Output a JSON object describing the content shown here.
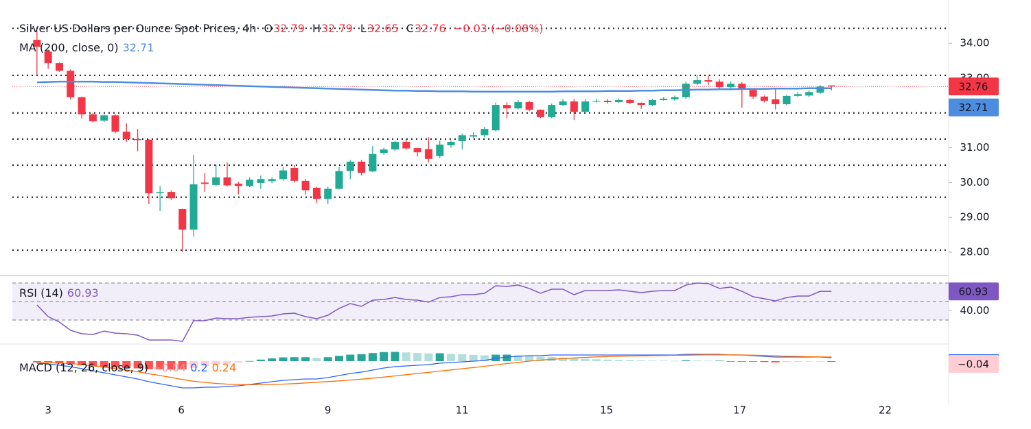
{
  "chart_data": [
    {
      "type": "candlestick",
      "title": "Silver US Dollars per Ounce Spot Prices, 4h",
      "ohlc_letters": [
        "O",
        "H",
        "L",
        "C"
      ],
      "change_label": "−0.03 (−0.08%)",
      "up_color": "#22ab94",
      "down_color": "#f23645",
      "open": [
        34.1,
        33.76,
        33.43,
        33.21,
        32.45,
        31.96,
        31.78,
        31.93,
        31.46,
        31.25,
        31.23,
        29.7,
        29.73,
        29.24,
        28.65,
        30.0,
        29.93,
        30.15,
        29.97,
        29.9,
        29.99,
        30.04,
        30.1,
        30.42,
        30.05,
        29.85,
        29.53,
        29.82,
        30.33,
        30.6,
        30.32,
        30.85,
        30.95,
        31.17,
        30.99,
        30.96,
        30.76,
        31.07,
        31.19,
        31.32,
        31.36,
        31.5,
        32.23,
        32.13,
        32.31,
        32.09,
        31.88,
        32.23,
        32.33,
        32.03,
        32.33,
        32.35,
        32.31,
        32.37,
        32.29,
        32.23,
        32.37,
        32.39,
        32.45,
        32.84,
        32.94,
        32.9,
        32.74,
        32.84,
        32.66,
        32.47,
        32.39,
        32.25,
        32.49,
        32.5,
        32.58,
        32.79
      ],
      "high": [
        34.37,
        33.82,
        33.45,
        33.25,
        32.47,
        32.0,
        31.96,
        31.96,
        31.7,
        31.54,
        31.25,
        29.9,
        29.78,
        29.25,
        30.8,
        30.28,
        30.52,
        30.58,
        30.02,
        30.15,
        30.2,
        30.16,
        30.45,
        30.5,
        30.1,
        29.88,
        29.88,
        30.45,
        30.65,
        30.65,
        31.05,
        31.0,
        31.2,
        31.25,
        31.0,
        31.3,
        31.2,
        31.2,
        31.4,
        31.45,
        31.6,
        32.3,
        32.3,
        32.37,
        32.35,
        32.1,
        32.27,
        32.4,
        32.4,
        32.4,
        32.4,
        32.4,
        32.42,
        32.4,
        32.3,
        32.4,
        32.45,
        32.5,
        32.9,
        33.1,
        33.08,
        32.97,
        32.9,
        32.88,
        32.7,
        32.5,
        32.7,
        32.52,
        32.6,
        32.65,
        32.8,
        32.79
      ],
      "low": [
        33.1,
        33.27,
        33.18,
        32.38,
        31.84,
        31.72,
        31.74,
        31.42,
        31.17,
        30.9,
        29.38,
        29.18,
        29.5,
        28.0,
        28.45,
        29.73,
        29.9,
        29.88,
        29.66,
        29.87,
        29.82,
        29.98,
        30.05,
        30.0,
        29.65,
        29.42,
        29.38,
        29.8,
        30.1,
        30.2,
        30.3,
        30.8,
        30.9,
        30.95,
        30.75,
        30.58,
        30.7,
        31.0,
        30.95,
        31.28,
        31.3,
        31.47,
        31.85,
        32.1,
        32.05,
        31.85,
        31.85,
        32.2,
        31.8,
        32.0,
        32.3,
        32.27,
        32.28,
        32.25,
        32.12,
        32.2,
        32.35,
        32.35,
        32.4,
        32.8,
        32.8,
        32.68,
        32.7,
        32.15,
        32.4,
        32.3,
        32.1,
        32.22,
        32.45,
        32.45,
        32.55,
        32.65
      ],
      "close": [
        33.9,
        33.43,
        33.21,
        32.45,
        31.96,
        31.76,
        31.93,
        31.46,
        31.25,
        31.22,
        29.69,
        29.73,
        29.55,
        28.65,
        29.95,
        29.96,
        30.15,
        29.92,
        29.9,
        30.08,
        30.1,
        30.1,
        30.35,
        30.05,
        29.78,
        29.53,
        29.82,
        30.33,
        30.6,
        30.28,
        30.82,
        30.95,
        31.17,
        30.98,
        30.87,
        30.68,
        31.09,
        31.17,
        31.36,
        31.36,
        31.54,
        32.23,
        32.13,
        32.31,
        32.09,
        31.88,
        32.23,
        32.33,
        32.03,
        32.33,
        32.35,
        32.31,
        32.37,
        32.29,
        32.23,
        32.37,
        32.41,
        32.45,
        32.84,
        32.94,
        32.9,
        32.74,
        32.84,
        32.66,
        32.47,
        32.35,
        32.25,
        32.49,
        32.54,
        32.6,
        32.76,
        32.76
      ],
      "overlay": {
        "name": "MA (200, close, 0)",
        "color": "#4c8de0",
        "values": [
          32.88,
          32.89,
          32.9,
          32.9,
          32.9,
          32.9,
          32.89,
          32.89,
          32.88,
          32.87,
          32.86,
          32.85,
          32.84,
          32.83,
          32.82,
          32.81,
          32.8,
          32.79,
          32.78,
          32.77,
          32.76,
          32.75,
          32.74,
          32.73,
          32.72,
          32.71,
          32.7,
          32.69,
          32.68,
          32.67,
          32.66,
          32.65,
          32.64,
          32.64,
          32.63,
          32.63,
          32.62,
          32.62,
          32.62,
          32.61,
          32.61,
          32.61,
          32.61,
          32.61,
          32.61,
          32.61,
          32.61,
          32.62,
          32.62,
          32.62,
          32.62,
          32.63,
          32.63,
          32.63,
          32.64,
          32.64,
          32.65,
          32.65,
          32.66,
          32.67,
          32.67,
          32.68,
          32.68,
          32.69,
          32.69,
          32.69,
          32.7,
          32.7,
          32.7,
          32.71,
          32.71,
          32.71
        ]
      },
      "levels": [
        34.43,
        33.08,
        32.0,
        31.25,
        30.5,
        29.58,
        28.06
      ],
      "ylim": [
        27.37,
        34.85
      ],
      "yticks": [
        {
          "value": 28,
          "label": "28.00"
        },
        {
          "value": 29,
          "label": "29.00"
        },
        {
          "value": 30,
          "label": "30.00"
        },
        {
          "value": 31,
          "label": "31.00"
        },
        {
          "value": 32,
          "label": "32.00"
        },
        {
          "value": 33,
          "label": "33.00"
        },
        {
          "value": 34,
          "label": "34.00"
        }
      ],
      "xlim": [
        -2.2,
        81.35
      ],
      "xticks": [
        {
          "value": 1,
          "label": "3"
        },
        {
          "value": 12.9,
          "label": "6"
        },
        {
          "value": 26,
          "label": "9"
        },
        {
          "value": 38,
          "label": "11"
        },
        {
          "value": 50.9,
          "label": "15"
        },
        {
          "value": 62.8,
          "label": "17"
        },
        {
          "value": 75.8,
          "label": "22"
        }
      ]
    },
    {
      "type": "line",
      "title": "RSI (14)",
      "color": "#7e57c2",
      "values": [
        46.3,
        33.7,
        27.8,
        18.9,
        15.2,
        14.4,
        18.1,
        15.9,
        15.2,
        13.7,
        8.5,
        8.5,
        8.5,
        7.0,
        29.3,
        29.3,
        32.2,
        31.5,
        31.5,
        33.0,
        33.7,
        34.4,
        36.7,
        37.4,
        33.7,
        31.5,
        35.2,
        42.6,
        47.8,
        44.8,
        51.5,
        52.2,
        54.4,
        52.2,
        51.5,
        49.3,
        54.4,
        55.2,
        57.4,
        57.4,
        58.9,
        67.0,
        66.3,
        67.8,
        64.1,
        58.9,
        63.3,
        63.3,
        57.4,
        61.9,
        61.9,
        61.9,
        62.6,
        61.1,
        59.6,
        61.1,
        61.9,
        61.9,
        67.8,
        70.0,
        69.3,
        64.1,
        65.6,
        61.1,
        55.2,
        53.0,
        50.7,
        54.4,
        55.9,
        55.9,
        61.1,
        60.93
      ],
      "band": [
        30,
        70
      ],
      "levels": [
        70,
        50,
        30
      ],
      "ylim": [
        5.6,
        75.9
      ],
      "yticks": [
        {
          "value": 40,
          "label": "40.00"
        }
      ]
    },
    {
      "type": "macd",
      "title": "MACD (12, 26, close, 9)",
      "macd": {
        "color": "#2962ff",
        "values": [
          -0.12,
          -0.16,
          -0.24,
          -0.32,
          -0.44,
          -0.56,
          -0.68,
          -0.8,
          -0.92,
          -1.04,
          -1.2,
          -1.32,
          -1.44,
          -1.56,
          -1.56,
          -1.52,
          -1.52,
          -1.48,
          -1.44,
          -1.36,
          -1.28,
          -1.2,
          -1.12,
          -1.08,
          -1.04,
          -1.04,
          -0.96,
          -0.84,
          -0.72,
          -0.64,
          -0.52,
          -0.4,
          -0.32,
          -0.28,
          -0.24,
          -0.2,
          -0.12,
          -0.08,
          -0.04,
          0,
          0.04,
          0.16,
          0.24,
          0.28,
          0.32,
          0.32,
          0.36,
          0.36,
          0.36,
          0.36,
          0.36,
          0.36,
          0.36,
          0.36,
          0.36,
          0.36,
          0.36,
          0.36,
          0.4,
          0.4,
          0.4,
          0.4,
          0.36,
          0.36,
          0.32,
          0.28,
          0.24,
          0.24,
          0.24,
          0.24,
          0.24,
          0.2
        ]
      },
      "signal": {
        "color": "#ff6d00",
        "values": [
          -0.05,
          -0.07,
          -0.1,
          -0.14,
          -0.2,
          -0.27,
          -0.35,
          -0.43,
          -0.52,
          -0.62,
          -0.73,
          -0.84,
          -0.95,
          -1.07,
          -1.17,
          -1.24,
          -1.3,
          -1.34,
          -1.36,
          -1.37,
          -1.37,
          -1.36,
          -1.34,
          -1.31,
          -1.27,
          -1.23,
          -1.19,
          -1.15,
          -1.1,
          -1.05,
          -0.99,
          -0.93,
          -0.86,
          -0.79,
          -0.72,
          -0.65,
          -0.58,
          -0.51,
          -0.44,
          -0.37,
          -0.3,
          -0.22,
          -0.14,
          -0.07,
          0,
          0.06,
          0.11,
          0.15,
          0.19,
          0.22,
          0.25,
          0.27,
          0.29,
          0.3,
          0.31,
          0.32,
          0.33,
          0.34,
          0.35,
          0.36,
          0.37,
          0.37,
          0.37,
          0.36,
          0.35,
          0.33,
          0.31,
          0.29,
          0.28,
          0.26,
          0.25,
          0.24
        ]
      },
      "histogram": {
        "colors": [
          "#26a69a",
          "#b2dfdb",
          "#ff5252",
          "#ffcdd2"
        ],
        "values": [
          -0.07,
          -0.09,
          -0.14,
          -0.18,
          -0.24,
          -0.29,
          -0.33,
          -0.37,
          -0.4,
          -0.42,
          -0.47,
          -0.48,
          -0.49,
          -0.49,
          -0.39,
          -0.28,
          -0.22,
          -0.14,
          -0.08,
          0.01,
          0.09,
          0.16,
          0.22,
          0.23,
          0.23,
          0.19,
          0.23,
          0.31,
          0.38,
          0.41,
          0.47,
          0.53,
          0.54,
          0.51,
          0.48,
          0.45,
          0.46,
          0.43,
          0.4,
          0.37,
          0.34,
          0.38,
          0.38,
          0.35,
          0.32,
          0.26,
          0.25,
          0.21,
          0.17,
          0.14,
          0.11,
          0.09,
          0.07,
          0.06,
          0.05,
          0.04,
          0.03,
          0.02,
          0.05,
          0.04,
          0.03,
          0.03,
          -0.01,
          0,
          -0.03,
          -0.05,
          -0.07,
          -0.05,
          -0.04,
          -0.02,
          -0.01,
          -0.04
        ],
        "last_value_label": "−0.04"
      },
      "ylim": [
        -2.52,
        0.88
      ]
    }
  ]
}
